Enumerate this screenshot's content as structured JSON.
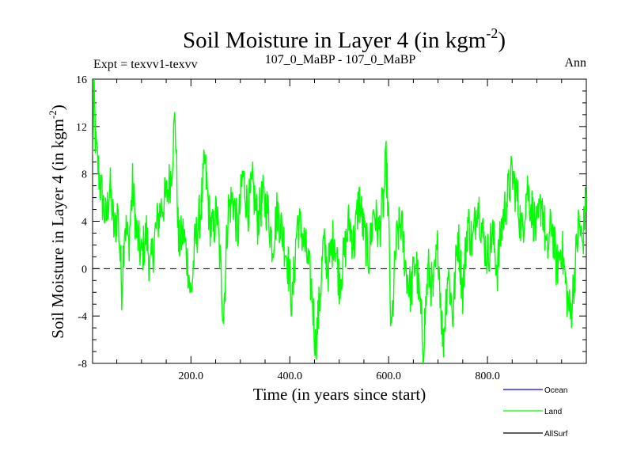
{
  "chart_data": {
    "type": "line",
    "title": "Soil Moisture in Layer 4 (in kgm",
    "title_sup": "-2",
    "title_close": ")",
    "subtitle_left": "Expt = texvv1-texvv",
    "subtitle_center": "107_0_MaBP - 107_0_MaBP",
    "subtitle_right": "Ann",
    "xlabel": "Time (in years since start)",
    "ylabel": "Soil Moisture in Layer 4 (in kgm",
    "ylabel_sup": "-2",
    "ylabel_close": ")",
    "xlim": [
      1,
      1000
    ],
    "ylim": [
      -8,
      16
    ],
    "xticks": [
      200,
      400,
      600,
      800
    ],
    "xtick_labels": [
      "200.0",
      "400.0",
      "600.0",
      "800.0"
    ],
    "yticks": [
      -8,
      -4,
      0,
      4,
      8,
      12,
      16
    ],
    "ytick_labels": [
      "-8",
      "-4",
      "0",
      "4",
      "8",
      "12",
      "16"
    ],
    "reference_line": 0,
    "series": [
      {
        "name": "Ocean",
        "color": "#0000ff",
        "values": []
      },
      {
        "name": "Land",
        "color": "#00ff00",
        "anchors": [
          [
            1,
            9
          ],
          [
            4,
            14.5
          ],
          [
            8,
            10
          ],
          [
            14,
            8
          ],
          [
            20,
            6
          ],
          [
            28,
            4
          ],
          [
            36,
            7
          ],
          [
            45,
            3
          ],
          [
            52,
            5
          ],
          [
            60,
            -1.5
          ],
          [
            66,
            4
          ],
          [
            74,
            2
          ],
          [
            82,
            7
          ],
          [
            90,
            3
          ],
          [
            100,
            1
          ],
          [
            110,
            3
          ],
          [
            118,
            -0.2
          ],
          [
            128,
            3
          ],
          [
            138,
            5
          ],
          [
            150,
            6
          ],
          [
            160,
            8
          ],
          [
            168,
            13
          ],
          [
            175,
            2
          ],
          [
            185,
            3
          ],
          [
            195,
            0
          ],
          [
            200,
            -2.5
          ],
          [
            208,
            2
          ],
          [
            220,
            5
          ],
          [
            228,
            9
          ],
          [
            238,
            4
          ],
          [
            245,
            3
          ],
          [
            252,
            5
          ],
          [
            260,
            0
          ],
          [
            266,
            -4
          ],
          [
            275,
            5
          ],
          [
            285,
            6
          ],
          [
            295,
            3
          ],
          [
            305,
            8
          ],
          [
            315,
            5
          ],
          [
            325,
            7
          ],
          [
            335,
            4
          ],
          [
            345,
            6
          ],
          [
            355,
            5
          ],
          [
            365,
            2
          ],
          [
            375,
            5
          ],
          [
            385,
            3
          ],
          [
            395,
            1
          ],
          [
            405,
            -3
          ],
          [
            415,
            4
          ],
          [
            425,
            3
          ],
          [
            435,
            1
          ],
          [
            445,
            -2
          ],
          [
            452,
            -6.5
          ],
          [
            460,
            -3
          ],
          [
            468,
            2
          ],
          [
            478,
            0
          ],
          [
            490,
            3
          ],
          [
            500,
            -1
          ],
          [
            510,
            1
          ],
          [
            520,
            4
          ],
          [
            530,
            2
          ],
          [
            540,
            6
          ],
          [
            550,
            3
          ],
          [
            560,
            1
          ],
          [
            570,
            5
          ],
          [
            580,
            3
          ],
          [
            590,
            6
          ],
          [
            595,
            9
          ],
          [
            600,
            4
          ],
          [
            605,
            -6
          ],
          [
            615,
            2
          ],
          [
            625,
            4
          ],
          [
            635,
            0
          ],
          [
            645,
            -2
          ],
          [
            655,
            1
          ],
          [
            665,
            -4
          ],
          [
            670,
            -6.5
          ],
          [
            680,
            0
          ],
          [
            690,
            -2
          ],
          [
            700,
            2
          ],
          [
            710,
            -6.5
          ],
          [
            720,
            0
          ],
          [
            730,
            -4
          ],
          [
            740,
            3
          ],
          [
            750,
            -2
          ],
          [
            760,
            4
          ],
          [
            770,
            2
          ],
          [
            780,
            6
          ],
          [
            790,
            3
          ],
          [
            800,
            1
          ],
          [
            810,
            3
          ],
          [
            820,
            0
          ],
          [
            830,
            4
          ],
          [
            840,
            6
          ],
          [
            850,
            8
          ],
          [
            860,
            6
          ],
          [
            870,
            3
          ],
          [
            880,
            7
          ],
          [
            890,
            5
          ],
          [
            900,
            3
          ],
          [
            910,
            6
          ],
          [
            920,
            1
          ],
          [
            930,
            4
          ],
          [
            940,
            0
          ],
          [
            950,
            2
          ],
          [
            960,
            -2
          ],
          [
            968,
            -4
          ],
          [
            975,
            -1
          ],
          [
            985,
            4
          ],
          [
            992,
            2
          ],
          [
            1000,
            6
          ]
        ]
      },
      {
        "name": "AllSurf",
        "color": "#000000",
        "values": []
      }
    ],
    "legend": [
      "Ocean",
      "Land",
      "AllSurf"
    ],
    "legend_location": "bottom-right"
  }
}
